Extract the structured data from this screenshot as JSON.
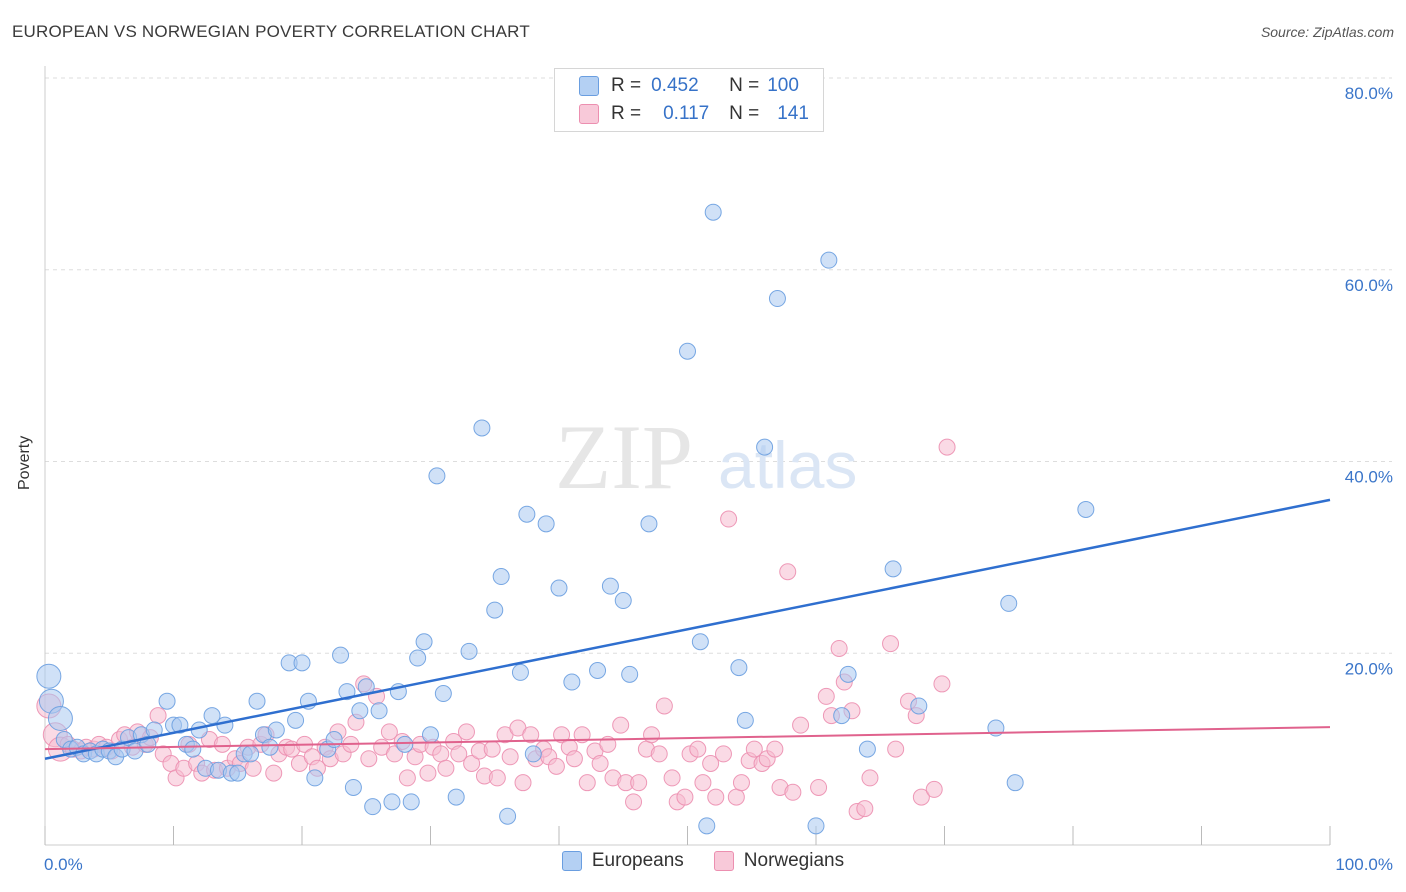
{
  "title": "EUROPEAN VS NORWEGIAN POVERTY CORRELATION CHART",
  "source": "Source: ZipAtlas.com",
  "watermark": {
    "zip": "ZIP",
    "atlas": "atlas"
  },
  "legend": {
    "rows": [
      {
        "r_label": "R =",
        "r_value": "0.452",
        "n_label": "N =",
        "n_value": "100"
      },
      {
        "r_label": "R =",
        "r_value": "0.117",
        "n_label": "N =",
        "n_value": "141"
      }
    ]
  },
  "bottom_legend": {
    "europeans": "Europeans",
    "norwegians": "Norwegians"
  },
  "colors": {
    "europeans_fill": "#a9c8f0",
    "europeans_stroke": "#6a9ee0",
    "europeans_line": "#2f6fcf",
    "norwegians_fill": "#f6bcd0",
    "norwegians_stroke": "#ec8fb0",
    "norwegians_line": "#e0628d",
    "axis_text": "#3a75c9",
    "grid": "#dddddd"
  },
  "chart_data": {
    "type": "scatter",
    "title": "EUROPEAN VS NORWEGIAN POVERTY CORRELATION CHART",
    "xlabel": "",
    "ylabel": "Poverty",
    "xlim": [
      0,
      100
    ],
    "ylim": [
      0,
      80
    ],
    "x_tick_labels": [
      "0.0%",
      "100.0%"
    ],
    "y_ticks": [
      20,
      40,
      60,
      80
    ],
    "y_tick_labels": [
      "20.0%",
      "40.0%",
      "60.0%",
      "80.0%"
    ],
    "grid": true,
    "legend_position": "top-center",
    "series": [
      {
        "name": "Europeans",
        "trend": {
          "x": [
            0,
            100
          ],
          "y": [
            9.0,
            36.0
          ]
        },
        "points": [
          [
            0.3,
            17.6
          ],
          [
            0.5,
            15.0
          ],
          [
            1.2,
            13.2
          ],
          [
            1.5,
            11.0
          ],
          [
            2.0,
            10.0
          ],
          [
            2.5,
            10.2
          ],
          [
            3.0,
            9.5
          ],
          [
            3.5,
            9.8
          ],
          [
            4.0,
            9.5
          ],
          [
            4.5,
            10.0
          ],
          [
            5.0,
            9.8
          ],
          [
            5.5,
            9.2
          ],
          [
            6.0,
            10.0
          ],
          [
            6.5,
            11.2
          ],
          [
            7.0,
            9.8
          ],
          [
            7.5,
            11.5
          ],
          [
            8.0,
            10.5
          ],
          [
            8.5,
            12.0
          ],
          [
            9.5,
            15.0
          ],
          [
            10.0,
            12.5
          ],
          [
            10.5,
            12.5
          ],
          [
            11.0,
            10.5
          ],
          [
            11.5,
            10.0
          ],
          [
            12.0,
            12.0
          ],
          [
            12.5,
            8.0
          ],
          [
            13.0,
            13.5
          ],
          [
            13.5,
            7.8
          ],
          [
            14.0,
            12.5
          ],
          [
            14.5,
            7.5
          ],
          [
            15.0,
            7.5
          ],
          [
            15.5,
            9.5
          ],
          [
            16.0,
            9.5
          ],
          [
            16.5,
            15.0
          ],
          [
            17.0,
            11.5
          ],
          [
            17.5,
            10.2
          ],
          [
            18.0,
            12.0
          ],
          [
            19.0,
            19.0
          ],
          [
            19.5,
            13.0
          ],
          [
            20.0,
            19.0
          ],
          [
            20.5,
            15.0
          ],
          [
            21.0,
            7.0
          ],
          [
            22.0,
            10.0
          ],
          [
            22.5,
            11.0
          ],
          [
            23.0,
            19.8
          ],
          [
            23.5,
            16.0
          ],
          [
            24.0,
            6.0
          ],
          [
            24.5,
            14.0
          ],
          [
            25.0,
            16.5
          ],
          [
            25.5,
            4.0
          ],
          [
            26.0,
            14.0
          ],
          [
            27.0,
            4.5
          ],
          [
            27.5,
            16.0
          ],
          [
            28.0,
            10.5
          ],
          [
            28.5,
            4.5
          ],
          [
            29.0,
            19.5
          ],
          [
            29.5,
            21.2
          ],
          [
            30.0,
            11.5
          ],
          [
            30.5,
            38.5
          ],
          [
            31.0,
            15.8
          ],
          [
            32.0,
            5.0
          ],
          [
            33.0,
            20.2
          ],
          [
            34.0,
            43.5
          ],
          [
            35.0,
            24.5
          ],
          [
            35.5,
            28.0
          ],
          [
            36.0,
            3.0
          ],
          [
            37.0,
            18.0
          ],
          [
            37.5,
            34.5
          ],
          [
            38.0,
            9.5
          ],
          [
            39.0,
            33.5
          ],
          [
            40.0,
            26.8
          ],
          [
            41.0,
            17.0
          ],
          [
            43.0,
            18.2
          ],
          [
            44.0,
            27.0
          ],
          [
            45.0,
            25.5
          ],
          [
            45.5,
            17.8
          ],
          [
            47.0,
            33.5
          ],
          [
            50.0,
            51.5
          ],
          [
            51.0,
            21.2
          ],
          [
            51.5,
            2.0
          ],
          [
            52.0,
            66.0
          ],
          [
            54.0,
            18.5
          ],
          [
            54.5,
            13.0
          ],
          [
            56.0,
            41.5
          ],
          [
            57.0,
            57.0
          ],
          [
            60.0,
            2.0
          ],
          [
            61.0,
            61.0
          ],
          [
            62.0,
            13.5
          ],
          [
            62.5,
            17.8
          ],
          [
            64.0,
            10.0
          ],
          [
            66.0,
            28.8
          ],
          [
            68.0,
            14.5
          ],
          [
            74.0,
            12.2
          ],
          [
            75.0,
            25.2
          ],
          [
            75.5,
            6.5
          ],
          [
            81.0,
            35.0
          ]
        ]
      },
      {
        "name": "Norwegians",
        "trend": {
          "x": [
            0,
            100
          ],
          "y": [
            10.0,
            12.3
          ]
        },
        "points": [
          [
            0.3,
            14.5
          ],
          [
            0.8,
            11.5
          ],
          [
            1.2,
            10.0
          ],
          [
            1.8,
            10.5
          ],
          [
            2.2,
            10.0
          ],
          [
            2.8,
            9.8
          ],
          [
            3.2,
            10.2
          ],
          [
            3.8,
            10.0
          ],
          [
            4.2,
            10.5
          ],
          [
            4.8,
            10.2
          ],
          [
            5.2,
            9.8
          ],
          [
            5.8,
            11.0
          ],
          [
            6.2,
            11.5
          ],
          [
            6.8,
            10.2
          ],
          [
            7.2,
            11.8
          ],
          [
            7.8,
            10.5
          ],
          [
            8.2,
            11.2
          ],
          [
            8.8,
            13.5
          ],
          [
            9.2,
            9.5
          ],
          [
            9.8,
            8.5
          ],
          [
            10.2,
            7.0
          ],
          [
            10.8,
            8.0
          ],
          [
            11.2,
            10.5
          ],
          [
            11.8,
            8.5
          ],
          [
            12.2,
            7.5
          ],
          [
            12.8,
            11.0
          ],
          [
            13.2,
            7.8
          ],
          [
            13.8,
            10.5
          ],
          [
            14.2,
            8.0
          ],
          [
            14.8,
            9.0
          ],
          [
            15.2,
            8.5
          ],
          [
            15.8,
            10.2
          ],
          [
            16.2,
            8.0
          ],
          [
            16.8,
            10.5
          ],
          [
            17.2,
            11.5
          ],
          [
            17.8,
            7.5
          ],
          [
            18.2,
            9.5
          ],
          [
            18.8,
            10.2
          ],
          [
            19.2,
            10.0
          ],
          [
            19.8,
            8.5
          ],
          [
            20.2,
            10.5
          ],
          [
            20.8,
            9.2
          ],
          [
            21.2,
            8.0
          ],
          [
            21.8,
            10.2
          ],
          [
            22.2,
            9.0
          ],
          [
            22.8,
            11.8
          ],
          [
            23.2,
            9.5
          ],
          [
            23.8,
            10.5
          ],
          [
            24.2,
            12.8
          ],
          [
            24.8,
            16.8
          ],
          [
            25.2,
            9.0
          ],
          [
            25.8,
            15.5
          ],
          [
            26.2,
            10.2
          ],
          [
            26.8,
            11.8
          ],
          [
            27.2,
            9.5
          ],
          [
            27.8,
            10.8
          ],
          [
            28.2,
            7.0
          ],
          [
            28.8,
            9.2
          ],
          [
            29.2,
            10.5
          ],
          [
            29.8,
            7.5
          ],
          [
            30.2,
            10.2
          ],
          [
            30.8,
            9.5
          ],
          [
            31.2,
            8.0
          ],
          [
            31.8,
            10.8
          ],
          [
            32.2,
            9.5
          ],
          [
            32.8,
            11.8
          ],
          [
            33.2,
            8.5
          ],
          [
            33.8,
            9.8
          ],
          [
            34.2,
            7.2
          ],
          [
            34.8,
            10.0
          ],
          [
            35.2,
            7.0
          ],
          [
            35.8,
            11.5
          ],
          [
            36.2,
            9.2
          ],
          [
            36.8,
            12.2
          ],
          [
            37.2,
            6.5
          ],
          [
            37.8,
            11.5
          ],
          [
            38.2,
            9.0
          ],
          [
            38.8,
            10.0
          ],
          [
            39.2,
            9.2
          ],
          [
            39.8,
            8.2
          ],
          [
            40.2,
            11.5
          ],
          [
            40.8,
            10.2
          ],
          [
            41.2,
            9.0
          ],
          [
            41.8,
            11.5
          ],
          [
            42.2,
            6.5
          ],
          [
            42.8,
            9.8
          ],
          [
            43.2,
            8.5
          ],
          [
            43.8,
            10.5
          ],
          [
            44.2,
            7.0
          ],
          [
            44.8,
            12.5
          ],
          [
            45.2,
            6.5
          ],
          [
            45.8,
            4.5
          ],
          [
            46.2,
            6.5
          ],
          [
            46.8,
            10.0
          ],
          [
            47.2,
            11.5
          ],
          [
            47.8,
            9.5
          ],
          [
            48.2,
            14.5
          ],
          [
            48.8,
            7.0
          ],
          [
            49.2,
            4.5
          ],
          [
            49.8,
            5.0
          ],
          [
            50.2,
            9.5
          ],
          [
            50.8,
            10.0
          ],
          [
            51.2,
            6.5
          ],
          [
            51.8,
            8.5
          ],
          [
            52.2,
            5.0
          ],
          [
            52.8,
            9.5
          ],
          [
            53.2,
            34.0
          ],
          [
            53.8,
            5.0
          ],
          [
            54.2,
            6.5
          ],
          [
            54.8,
            8.8
          ],
          [
            55.2,
            10.0
          ],
          [
            55.8,
            8.5
          ],
          [
            56.2,
            9.0
          ],
          [
            56.8,
            10.0
          ],
          [
            57.2,
            6.0
          ],
          [
            57.8,
            28.5
          ],
          [
            58.2,
            5.5
          ],
          [
            58.8,
            12.5
          ],
          [
            60.2,
            6.0
          ],
          [
            60.8,
            15.5
          ],
          [
            61.2,
            13.5
          ],
          [
            61.8,
            20.5
          ],
          [
            62.2,
            17.0
          ],
          [
            62.8,
            14.0
          ],
          [
            63.2,
            3.5
          ],
          [
            63.8,
            3.8
          ],
          [
            64.2,
            7.0
          ],
          [
            65.8,
            21.0
          ],
          [
            66.2,
            10.0
          ],
          [
            67.2,
            15.0
          ],
          [
            67.8,
            13.5
          ],
          [
            68.2,
            5.0
          ],
          [
            69.2,
            5.8
          ],
          [
            69.8,
            16.8
          ],
          [
            70.2,
            41.5
          ]
        ]
      }
    ]
  }
}
